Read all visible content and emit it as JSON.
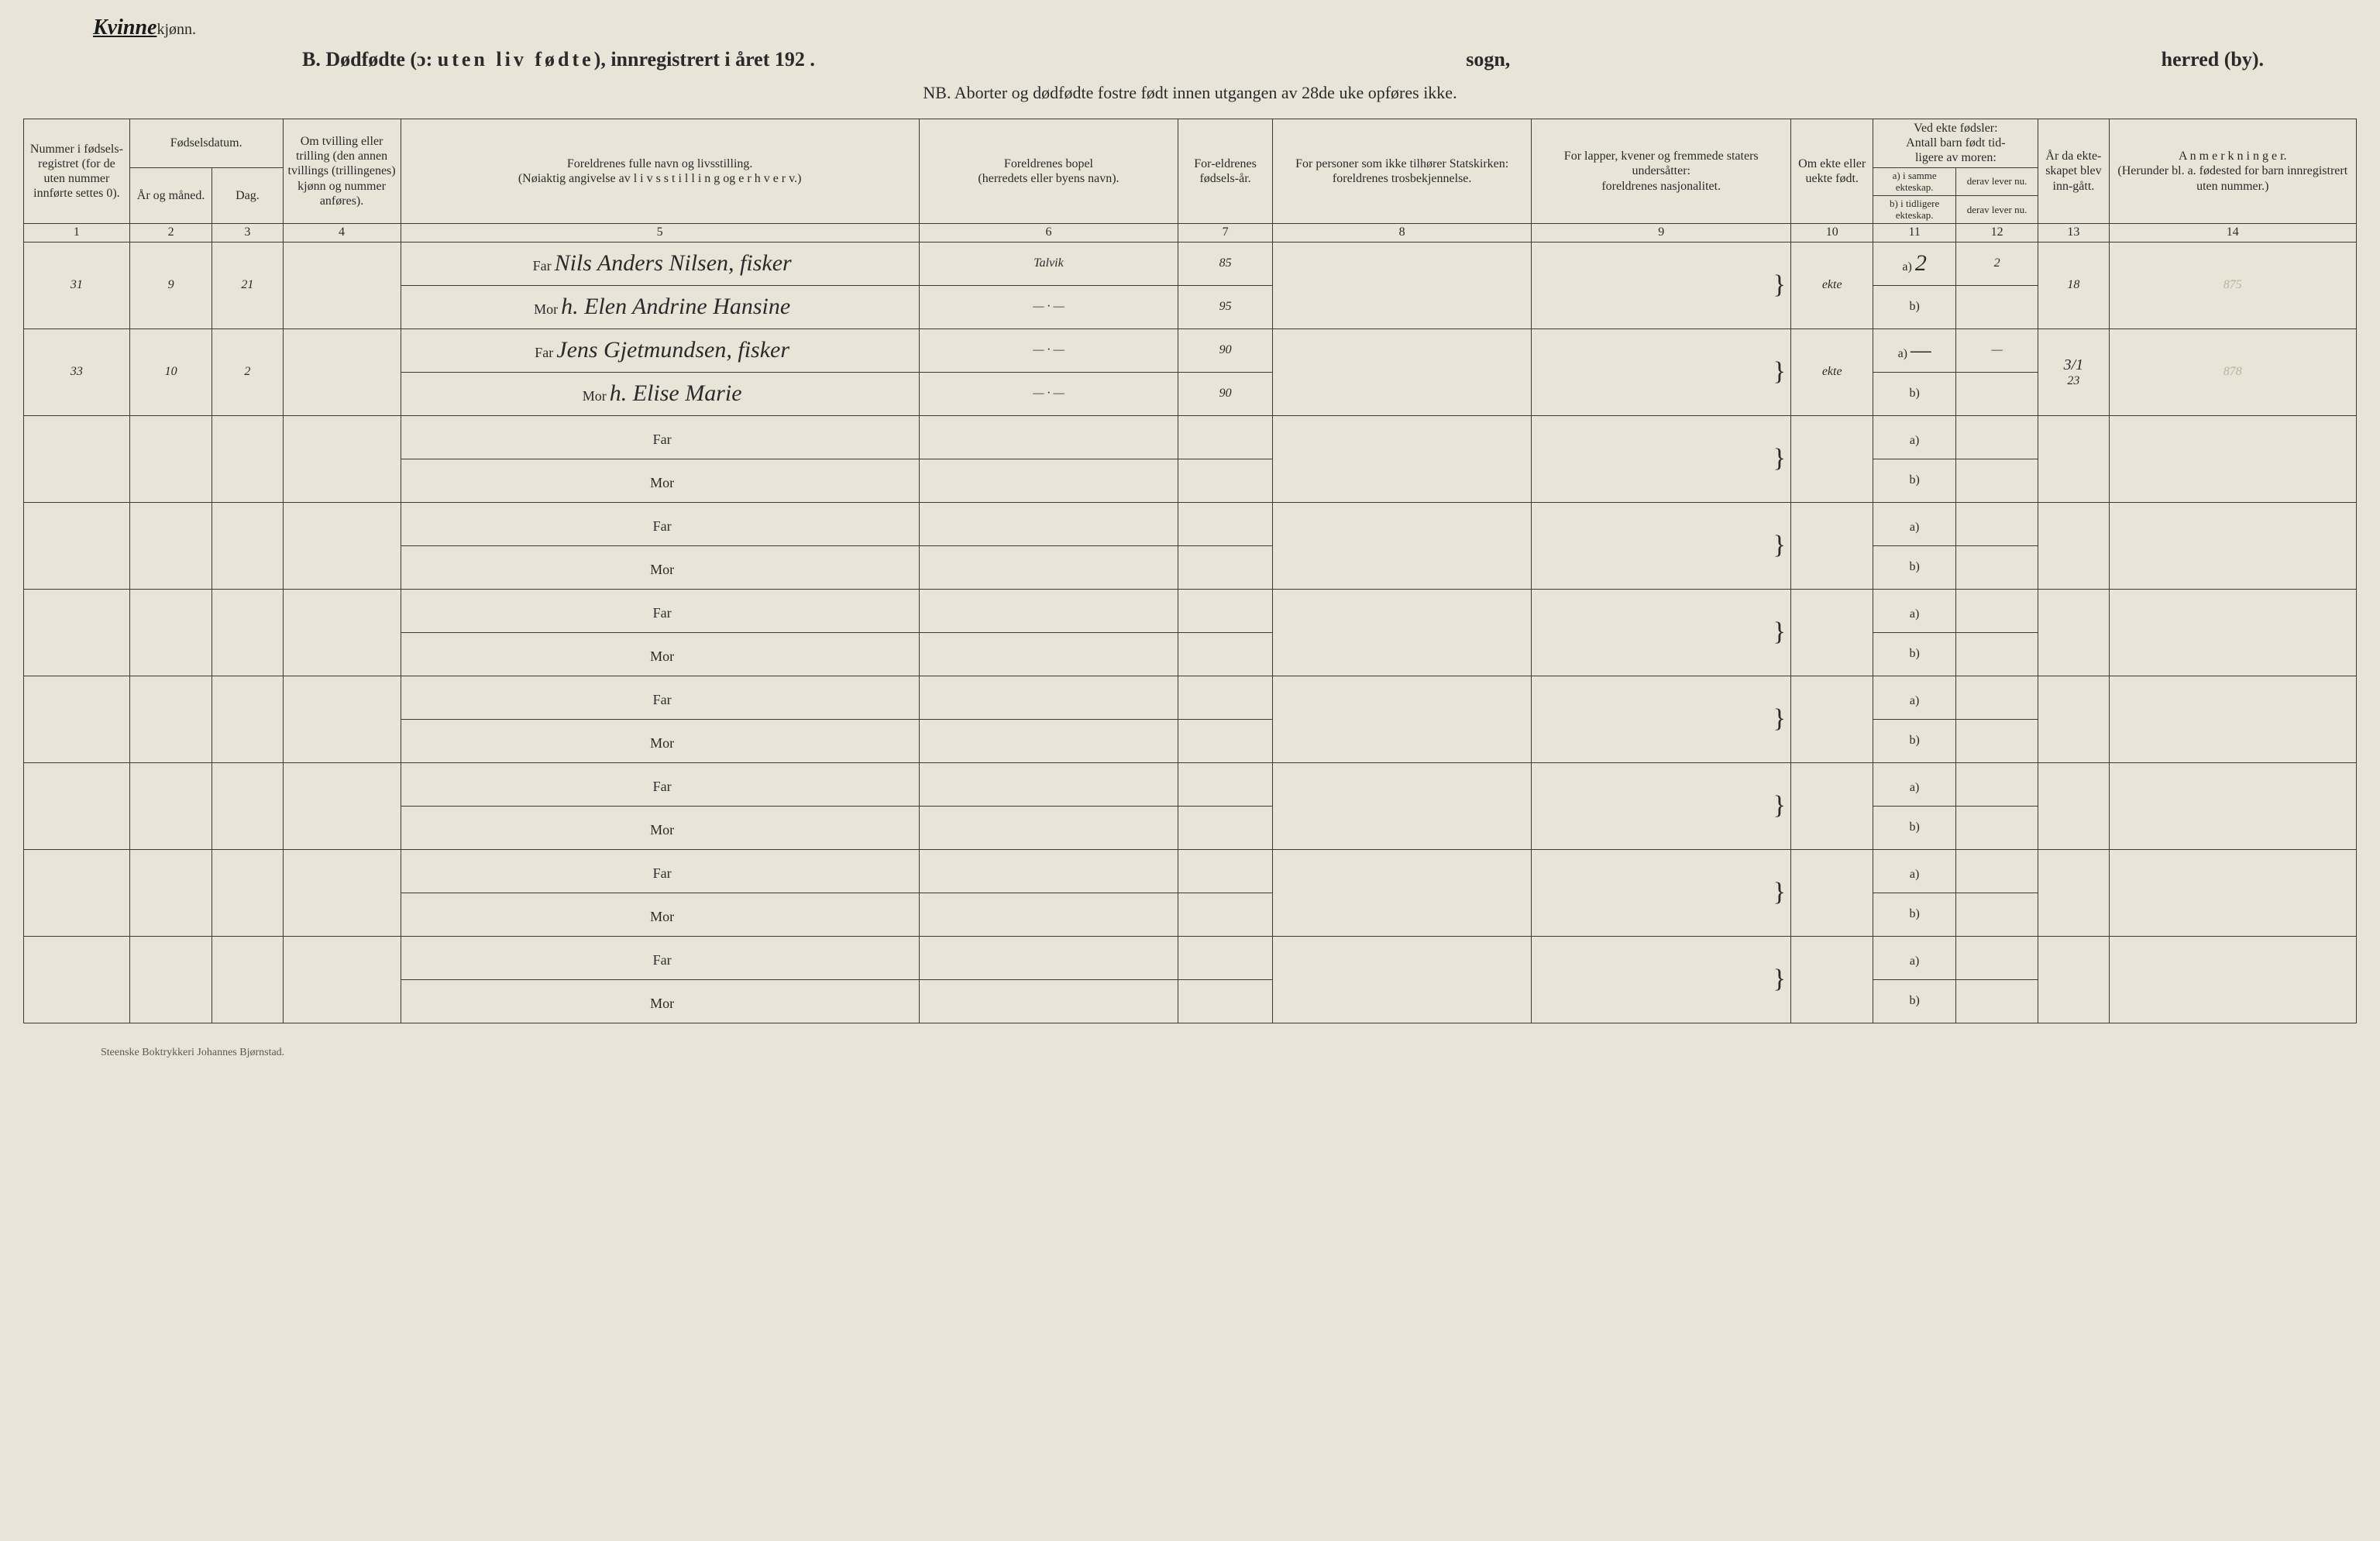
{
  "header": {
    "handwritten_gender": "Kvinne",
    "printed_gender_suffix": "kjønn.",
    "title_left_prefix": "B.  Dødfødte (ɔ:  ",
    "title_left_spaced": "uten liv fødte",
    "title_left_suffix": "), innregistrert i året 192   .",
    "title_mid": "sogn,",
    "title_right": "herred (by).",
    "subtitle": "NB.  Aborter og dødfødte fostre født innen utgangen av 28de uke opføres ikke."
  },
  "columns": {
    "c1": "Nummer i fødsels-registret (for de uten nummer innførte settes 0).",
    "c2_group": "Fødselsdatum.",
    "c2a": "År og måned.",
    "c2b": "Dag.",
    "c4": "Om tvilling eller trilling (den annen tvillings (trillingenes) kjønn og nummer anføres).",
    "c5": "Foreldrenes fulle navn og livsstilling.\n(Nøiaktig angivelse av  l i v s s t i l l i n g  og e r h v e r v.)",
    "c6": "Foreldrenes bopel\n(herredets eller byens navn).",
    "c7": "For-eldrenes fødsels-år.",
    "c8": "For personer som ikke tilhører Statskirken:\nforeldrenes trosbekjennelse.",
    "c9": "For lapper, kvener og fremmede staters undersåtter:\nforeldrenes nasjonalitet.",
    "c10": "Om ekte eller uekte født.",
    "c11_12_group": "Ved ekte fødsler:\nAntall barn født tid-\nligere av moren:",
    "c11a": "a) i samme ekteskap.",
    "c11b": "b) i tidligere ekteskap.",
    "c12a": "derav lever nu.",
    "c12b": "derav lever nu.",
    "c13": "År da ekte-skapet blev inn-gått.",
    "c14": "A n m e r k n i n g e r.\n(Herunder bl. a. fødested for barn innregistrert uten nummer.)"
  },
  "colnums": [
    "1",
    "2",
    "3",
    "4",
    "5",
    "6",
    "7",
    "8",
    "9",
    "10",
    "11",
    "12",
    "13",
    "14"
  ],
  "row_labels": {
    "far": "Far",
    "mor": "Mor",
    "a": "a)",
    "b": "b)"
  },
  "entries": [
    {
      "num": "31",
      "month": "9",
      "day": "21",
      "far": "Nils Anders Nilsen, fisker",
      "far_bopel": "Talvik",
      "far_year": "85",
      "mor": "h. Elen Andrine Hansine",
      "mor_bopel": "—  ·  —",
      "mor_year": "95",
      "ekte": "ekte",
      "c11a": "2",
      "c12a": "2",
      "c13": "18",
      "remark": "875"
    },
    {
      "num": "33",
      "month": "10",
      "day": "2",
      "far": "Jens Gjetmundsen, fisker",
      "far_bopel": "—  ·  —",
      "far_year": "90",
      "mor": "h. Elise Marie",
      "mor_bopel": "—  ·  —",
      "mor_year": "90",
      "ekte": "ekte",
      "c11a": "—",
      "c12a": "—",
      "c13_top": "3/1",
      "c13": "23",
      "remark": "878"
    }
  ],
  "empty_rows": 7,
  "footer": "Steenske Boktrykkeri Johannes Bjørnstad.",
  "colors": {
    "paper": "#e8e5d8",
    "ink": "#2a2a2a",
    "faint": "#bfae9a",
    "rule": "#3a3a3a"
  },
  "col_widths_pct": [
    4.5,
    3.5,
    3,
    5,
    22,
    11,
    4,
    11,
    11,
    3.5,
    3.5,
    3.5,
    3,
    10.5
  ]
}
